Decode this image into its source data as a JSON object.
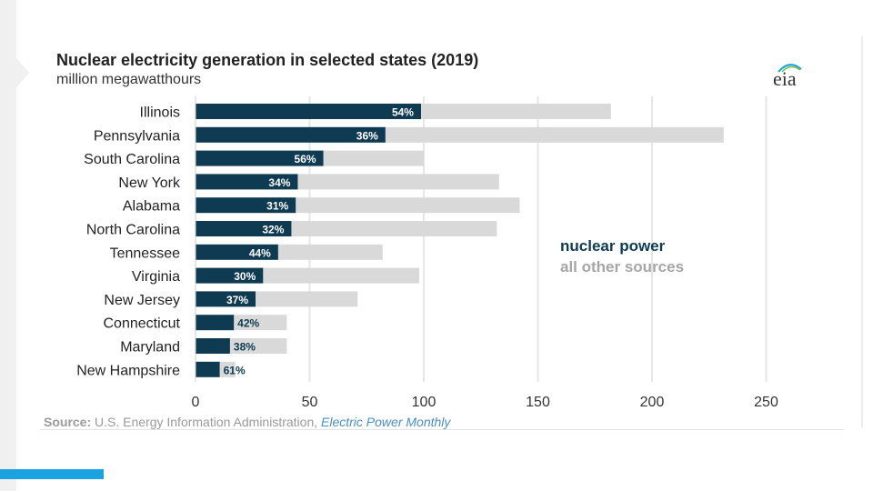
{
  "colors": {
    "nuclear": "#0e3a52",
    "other": "#d9d9d9",
    "accent": "#1aa3e0",
    "gridline": "#e6e6e6",
    "legend_nuclear": "#0e3a52",
    "legend_other": "#a6a6a6"
  },
  "logo": {
    "text": "eia"
  },
  "source": {
    "label": "Source:",
    "text": " U.S. Energy Information Administration, ",
    "publication": "Electric Power Monthly"
  },
  "chart_data": {
    "type": "bar",
    "orientation": "horizontal",
    "stacked": true,
    "title": "Nuclear electricity generation in selected states (2019)",
    "subtitle": "million megawatthours",
    "xlim": [
      0,
      275
    ],
    "xticks": [
      0,
      50,
      100,
      150,
      200,
      250
    ],
    "grid": true,
    "legend_position": "right",
    "categories": [
      "Illinois",
      "Pennsylvania",
      "South Carolina",
      "New York",
      "Alabama",
      "North Carolina",
      "Tennessee",
      "Virginia",
      "New Jersey",
      "Connecticut",
      "Maryland",
      "New Hampshire"
    ],
    "series": [
      {
        "name": "nuclear power",
        "values": [
          98.8,
          83.2,
          56.0,
          44.8,
          43.9,
          42.0,
          36.2,
          29.6,
          26.3,
          16.8,
          15.1,
          10.6
        ]
      },
      {
        "name": "all other sources",
        "values": [
          83.2,
          148.2,
          44.0,
          88.2,
          98.1,
          90.0,
          45.8,
          68.4,
          44.7,
          23.2,
          24.9,
          6.8
        ]
      }
    ],
    "data_labels": [
      "54%",
      "36%",
      "56%",
      "34%",
      "31%",
      "32%",
      "44%",
      "30%",
      "37%",
      "42%",
      "38%",
      "61%"
    ]
  }
}
